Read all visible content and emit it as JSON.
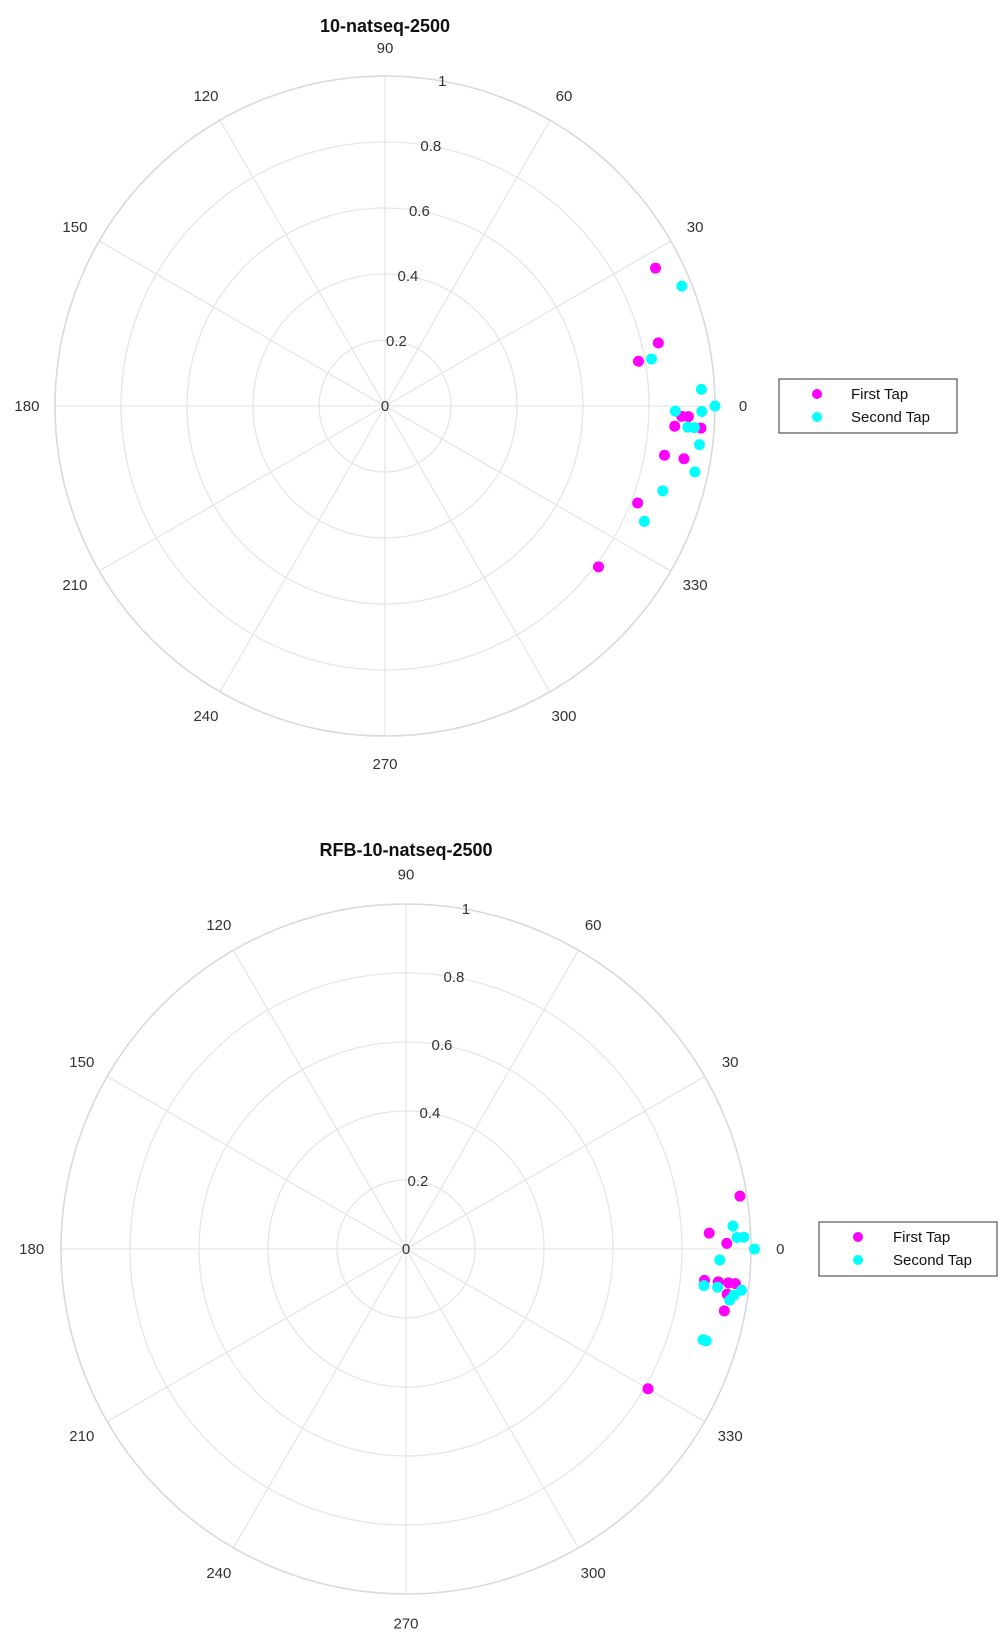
{
  "colors": {
    "first_tap": "#ff00ff",
    "second_tap": "#00ffff"
  },
  "chart_data": [
    {
      "type": "scatter",
      "subtype": "polar",
      "title": "10-natseq-2500",
      "theta_ticks": [
        "0",
        "30",
        "60",
        "90",
        "120",
        "150",
        "180",
        "210",
        "240",
        "270",
        "300",
        "330"
      ],
      "r_ticks": [
        "0",
        "0.2",
        "0.4",
        "0.6",
        "0.8",
        "1"
      ],
      "rlim": [
        0,
        1
      ],
      "theta_unit": "degrees",
      "legend_position": "right",
      "series": [
        {
          "name": "First Tap",
          "color": "#ff00ff",
          "points": [
            {
              "theta": 27,
              "r": 0.92
            },
            {
              "theta": 13,
              "r": 0.85
            },
            {
              "theta": 10,
              "r": 0.78
            },
            {
              "theta": -2,
              "r": 0.9
            },
            {
              "theta": -2,
              "r": 0.92
            },
            {
              "theta": -4,
              "r": 0.88
            },
            {
              "theta": -4,
              "r": 0.96
            },
            {
              "theta": -10,
              "r": 0.92
            },
            {
              "theta": -10,
              "r": 0.86
            },
            {
              "theta": -21,
              "r": 0.82
            },
            {
              "theta": -37,
              "r": 0.81
            }
          ]
        },
        {
          "name": "Second Tap",
          "color": "#00ffff",
          "points": [
            {
              "theta": 22,
              "r": 0.97
            },
            {
              "theta": 10,
              "r": 0.82
            },
            {
              "theta": 3,
              "r": 0.96
            },
            {
              "theta": 0,
              "r": 1.0
            },
            {
              "theta": -1,
              "r": 0.88
            },
            {
              "theta": -1,
              "r": 0.96
            },
            {
              "theta": -4,
              "r": 0.92
            },
            {
              "theta": -4,
              "r": 0.94
            },
            {
              "theta": -7,
              "r": 0.96
            },
            {
              "theta": -12,
              "r": 0.96
            },
            {
              "theta": -17,
              "r": 0.88
            },
            {
              "theta": -24,
              "r": 0.86
            }
          ]
        }
      ]
    },
    {
      "type": "scatter",
      "subtype": "polar",
      "title": "RFB-10-natseq-2500",
      "theta_ticks": [
        "0",
        "30",
        "60",
        "90",
        "120",
        "150",
        "180",
        "210",
        "240",
        "270",
        "300",
        "330"
      ],
      "r_ticks": [
        "0",
        "0.2",
        "0.4",
        "0.6",
        "0.8",
        "1"
      ],
      "rlim": [
        0,
        1
      ],
      "theta_unit": "degrees",
      "legend_position": "right",
      "series": [
        {
          "name": "First Tap",
          "color": "#ff00ff",
          "points": [
            {
              "theta": 9,
              "r": 0.98
            },
            {
              "theta": 3,
              "r": 0.88
            },
            {
              "theta": 1,
              "r": 0.93
            },
            {
              "theta": -6,
              "r": 0.87
            },
            {
              "theta": -6,
              "r": 0.91
            },
            {
              "theta": -6,
              "r": 0.94
            },
            {
              "theta": -6,
              "r": 0.96
            },
            {
              "theta": -8,
              "r": 0.94
            },
            {
              "theta": -11,
              "r": 0.94
            },
            {
              "theta": -30,
              "r": 0.81
            }
          ]
        },
        {
          "name": "Second Tap",
          "color": "#00ffff",
          "points": [
            {
              "theta": 4,
              "r": 0.95
            },
            {
              "theta": 2,
              "r": 0.98
            },
            {
              "theta": 2,
              "r": 0.96
            },
            {
              "theta": 0,
              "r": 1.01
            },
            {
              "theta": -2,
              "r": 0.91
            },
            {
              "theta": -7,
              "r": 0.87
            },
            {
              "theta": -7,
              "r": 0.91
            },
            {
              "theta": -7,
              "r": 0.98
            },
            {
              "theta": -8,
              "r": 0.96
            },
            {
              "theta": -9,
              "r": 0.95
            },
            {
              "theta": -17,
              "r": 0.9
            },
            {
              "theta": -17,
              "r": 0.91
            }
          ]
        }
      ]
    }
  ]
}
